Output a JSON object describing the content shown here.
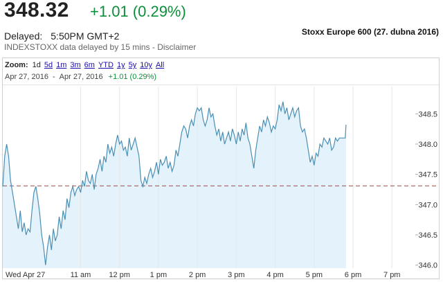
{
  "quote": {
    "price": "348.32",
    "change": "+1.01 (0.29%)",
    "delayed_label": "Delayed:",
    "delayed_time": "5:50PM GMT+2",
    "disclaimer": "INDEXSTOXX data delayed by 15 mins - Disclaimer"
  },
  "caption": "Stoxx Europe 600 (27. dubna 2016)",
  "zoom": {
    "label": "Zoom:",
    "options": [
      "1d",
      "5d",
      "1m",
      "3m",
      "6m",
      "YTD",
      "1y",
      "5y",
      "10y",
      "All"
    ],
    "active": "1d"
  },
  "range": {
    "from": "Apr 27, 2016",
    "separator": "-",
    "to": "Apr 27, 2016",
    "change": "+1.01 (0.29%)"
  },
  "colors": {
    "line": "#4a8fb3",
    "fill": "#e3f2fb",
    "positive": "#0c8f3a",
    "reference": "#9a4a4a"
  },
  "chart_data": {
    "type": "area",
    "x_ticks": [
      "Wed Apr 27",
      "11 am",
      "12 pm",
      "1 pm",
      "2 pm",
      "3 pm",
      "4 pm",
      "5 pm",
      "6 pm",
      "7 pm"
    ],
    "y_ticks": [
      "346.0",
      "346.5",
      "347.0",
      "347.5",
      "348.0",
      "348.5"
    ],
    "ylim": [
      345.95,
      348.95
    ],
    "xlim": [
      9.0,
      19.6
    ],
    "previous_close": 347.31,
    "grid": true,
    "series": [
      {
        "x": [
          9.0,
          9.05,
          9.1,
          9.15,
          9.2,
          9.25,
          9.3,
          9.35,
          9.4,
          9.45,
          9.5,
          9.55,
          9.6,
          9.65,
          9.7,
          9.75,
          9.8,
          9.85,
          9.9,
          9.95,
          10.0,
          10.05,
          10.1,
          10.15,
          10.2,
          10.25,
          10.3,
          10.35,
          10.4,
          10.45,
          10.5,
          10.55,
          10.6,
          10.65,
          10.7,
          10.75,
          10.8,
          10.85,
          10.9,
          10.95,
          11.0,
          11.05,
          11.1,
          11.15,
          11.2,
          11.25,
          11.3,
          11.35,
          11.4,
          11.45,
          11.5,
          11.55,
          11.6,
          11.65,
          11.7,
          11.75,
          11.8,
          11.85,
          11.9,
          11.95,
          12.0,
          12.05,
          12.1,
          12.15,
          12.2,
          12.25,
          12.3,
          12.35,
          12.4,
          12.45,
          12.5,
          12.55,
          12.6,
          12.65,
          12.7,
          12.75,
          12.8,
          12.85,
          12.9,
          12.95,
          13.0,
          13.05,
          13.1,
          13.15,
          13.2,
          13.25,
          13.3,
          13.35,
          13.4,
          13.45,
          13.5,
          13.55,
          13.6,
          13.65,
          13.7,
          13.75,
          13.8,
          13.85,
          13.9,
          13.95,
          14.0,
          14.05,
          14.1,
          14.15,
          14.2,
          14.25,
          14.3,
          14.35,
          14.4,
          14.45,
          14.5,
          14.55,
          14.6,
          14.65,
          14.7,
          14.75,
          14.8,
          14.85,
          14.9,
          14.95,
          15.0,
          15.05,
          15.1,
          15.15,
          15.2,
          15.25,
          15.3,
          15.35,
          15.4,
          15.45,
          15.5,
          15.55,
          15.6,
          15.65,
          15.7,
          15.75,
          15.8,
          15.85,
          15.9,
          15.95,
          16.0,
          16.05,
          16.1,
          16.15,
          16.2,
          16.25,
          16.3,
          16.35,
          16.4,
          16.45,
          16.5,
          16.55,
          16.6,
          16.65,
          16.7,
          16.75,
          16.8,
          16.85,
          16.9,
          16.95,
          17.0,
          17.05,
          17.1,
          17.15,
          17.2,
          17.25,
          17.3,
          17.35,
          17.4,
          17.45,
          17.5,
          17.55,
          17.6,
          17.65,
          17.7,
          17.75,
          17.8,
          17.82
        ],
        "values": [
          347.3,
          347.8,
          348.0,
          347.8,
          347.4,
          347.2,
          347.0,
          346.8,
          346.6,
          346.9,
          346.55,
          346.7,
          346.5,
          346.6,
          346.55,
          346.9,
          347.2,
          347.3,
          347.1,
          346.85,
          346.5,
          346.3,
          346.0,
          346.3,
          346.5,
          346.25,
          346.6,
          346.4,
          346.5,
          346.8,
          346.6,
          346.9,
          346.75,
          347.1,
          346.95,
          347.2,
          347.3,
          347.15,
          347.25,
          347.3,
          347.2,
          347.4,
          347.3,
          347.55,
          347.4,
          347.35,
          347.5,
          347.25,
          347.5,
          347.6,
          347.75,
          347.55,
          347.8,
          347.7,
          348.0,
          347.85,
          347.95,
          347.8,
          348.0,
          348.15,
          348.0,
          348.05,
          347.9,
          347.95,
          347.8,
          348.1,
          347.9,
          348.0,
          348.1,
          347.95,
          347.8,
          347.4,
          347.3,
          347.45,
          347.35,
          347.5,
          347.6,
          347.45,
          347.55,
          347.7,
          347.5,
          347.75,
          347.65,
          347.7,
          347.8,
          347.6,
          347.7,
          347.55,
          347.65,
          347.9,
          347.8,
          348.0,
          348.2,
          348.3,
          348.25,
          348.1,
          348.3,
          348.4,
          348.3,
          348.5,
          348.6,
          348.55,
          348.6,
          348.4,
          348.3,
          348.4,
          348.6,
          348.45,
          348.5,
          348.3,
          348.15,
          348.25,
          348.05,
          348.2,
          348.0,
          348.1,
          348.2,
          348.05,
          348.25,
          348.15,
          348.0,
          348.2,
          348.05,
          348.25,
          348.15,
          348.35,
          348.1,
          348.0,
          347.8,
          347.6,
          347.9,
          348.1,
          348.3,
          348.2,
          348.4,
          348.3,
          348.45,
          348.35,
          348.2,
          348.3,
          348.25,
          348.4,
          348.65,
          348.55,
          348.7,
          348.5,
          348.6,
          348.4,
          348.5,
          348.6,
          348.45,
          348.55,
          348.6,
          348.3,
          348.2,
          348.25,
          348.1,
          347.9,
          347.7,
          347.8,
          347.65,
          347.85,
          347.8,
          348.0,
          347.95,
          348.1,
          348.05,
          348.0,
          348.1,
          347.9,
          347.95,
          348.1,
          348.05,
          348.1,
          348.1,
          348.1,
          348.1,
          348.32
        ]
      }
    ]
  }
}
